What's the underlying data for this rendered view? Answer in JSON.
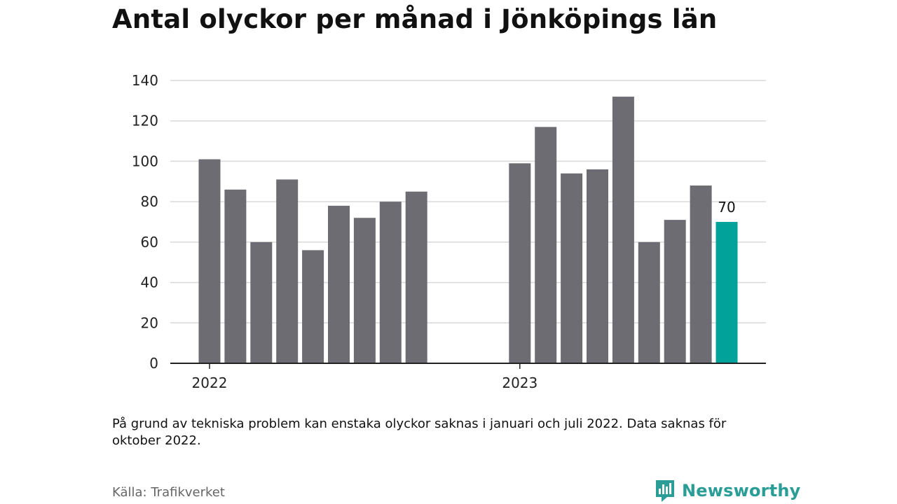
{
  "header": {
    "title": "Antal olyckor per månad i Jönköpings län"
  },
  "footer": {
    "note": "På grund av tekniska problem kan enstaka olyckor saknas i januari och juli 2022. Data saknas för oktober 2022.",
    "source": "Källa: Trafikverket",
    "brand": "Newsworthy"
  },
  "colors": {
    "bar": "#6d6c73",
    "highlight": "#00a29a",
    "grid": "#d9d9d9",
    "axis": "#222222",
    "brand": "#2a9d96"
  },
  "chart_data": {
    "type": "bar",
    "title": "Antal olyckor per månad i Jönköpings län",
    "xlabel": "",
    "ylabel": "",
    "ylim": [
      0,
      140
    ],
    "yticks": [
      0,
      20,
      40,
      60,
      80,
      100,
      120,
      140
    ],
    "grid": true,
    "xtick_labels": [
      {
        "label": "2022",
        "category": "2022-01"
      },
      {
        "label": "2023",
        "category": "2023-01"
      }
    ],
    "categories": [
      "2022-01",
      "2022-02",
      "2022-03",
      "2022-04",
      "2022-05",
      "2022-06",
      "2022-07",
      "2022-08",
      "2022-09",
      "2022-10",
      "2022-11",
      "2022-12",
      "2023-01",
      "2023-02",
      "2023-03",
      "2023-04",
      "2023-05",
      "2023-06",
      "2023-07",
      "2023-08",
      "2023-09"
    ],
    "values": [
      101,
      86,
      60,
      91,
      56,
      78,
      72,
      80,
      85,
      null,
      null,
      null,
      99,
      117,
      94,
      96,
      132,
      60,
      71,
      88,
      70
    ],
    "highlight_index": 20,
    "data_labels": [
      {
        "index": 20,
        "text": "70"
      }
    ]
  }
}
